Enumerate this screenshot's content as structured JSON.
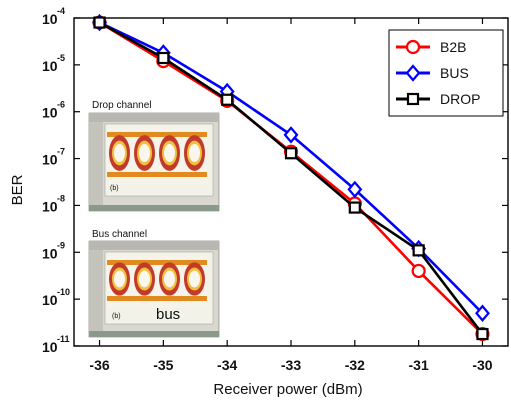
{
  "chart_data": {
    "type": "line",
    "title": "",
    "xlabel": "Receiver power (dBm)",
    "ylabel": "BER",
    "yscale": "log",
    "xlim": [
      -36.4,
      -29.6
    ],
    "ylim": [
      1e-11,
      0.0001
    ],
    "grid": false,
    "legend_position": "top-right",
    "x_ticks": [
      "-36",
      "-35",
      "-34",
      "-33",
      "-32",
      "-31",
      "-30"
    ],
    "x_tick_values": [
      -36,
      -35,
      -34,
      -33,
      -32,
      -31,
      -30
    ],
    "y_tick_mantissa": [
      "10",
      "10",
      "10",
      "10",
      "10",
      "10",
      "10",
      "10"
    ],
    "y_tick_exponent": [
      "-4",
      "-5",
      "-6",
      "-7",
      "-8",
      "-9",
      "-10",
      "-11"
    ],
    "y_tick_values": [
      0.0001,
      1e-05,
      1e-06,
      1e-07,
      1e-08,
      1e-09,
      1e-10,
      1e-11
    ],
    "series": [
      {
        "name": "B2B",
        "color": "#ff0000",
        "marker": "circle",
        "x": [
          -36,
          -35,
          -34,
          -33,
          -32,
          -31,
          -30
        ],
        "y": [
          8e-05,
          1.2e-05,
          1.7e-06,
          1.4e-07,
          1.1e-08,
          4e-10,
          1.8e-11
        ]
      },
      {
        "name": "BUS",
        "color": "#0000ff",
        "marker": "diamond",
        "x": [
          -36,
          -35,
          -34,
          -33,
          -32,
          -31,
          -30
        ],
        "y": [
          8e-05,
          1.8e-05,
          2.7e-06,
          3.2e-07,
          2.2e-08,
          1.2e-09,
          5e-11
        ]
      },
      {
        "name": "DROP",
        "color": "#000000",
        "marker": "square",
        "x": [
          -36,
          -35,
          -34,
          -33,
          -32,
          -31,
          -30
        ],
        "y": [
          8e-05,
          1.4e-05,
          1.8e-06,
          1.3e-07,
          9e-09,
          1.1e-09,
          1.8e-11
        ]
      }
    ],
    "insets": [
      {
        "title": "Drop channel",
        "panel_label": "(b)",
        "caption": ""
      },
      {
        "title": "Bus channel",
        "panel_label": "(b)",
        "caption": "bus"
      }
    ]
  }
}
